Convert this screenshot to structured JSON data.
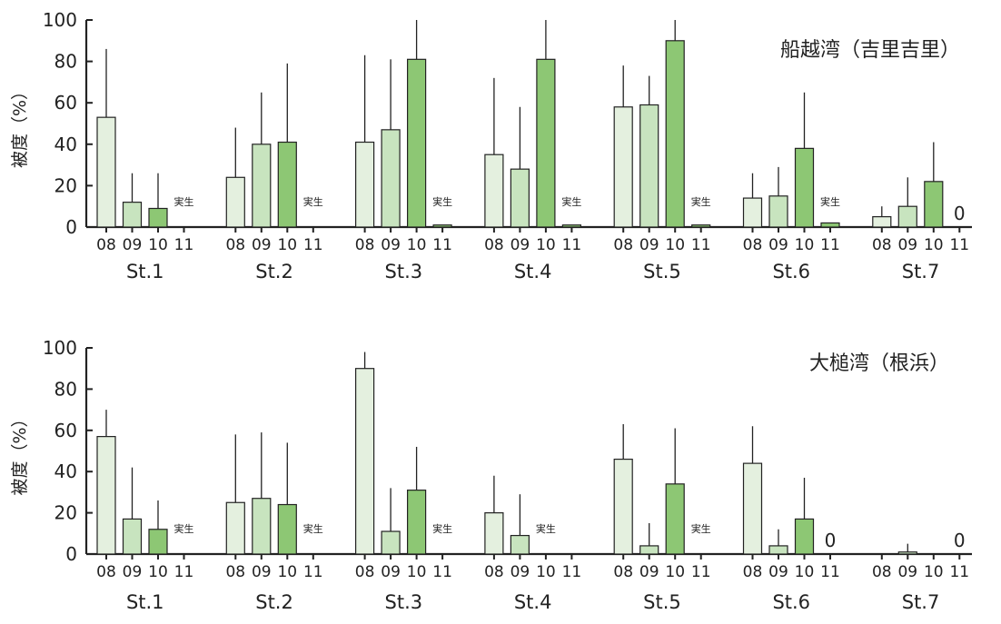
{
  "chart_data": [
    {
      "type": "bar",
      "title": "船越湾（吉里吉里）",
      "ylabel": "被度（%）",
      "ylim": [
        0,
        100
      ],
      "yticks": [
        "0",
        "20",
        "40",
        "60",
        "80",
        "100"
      ],
      "groups": [
        "St.1",
        "St.2",
        "St.3",
        "St.4",
        "St.5",
        "St.6",
        "St.7"
      ],
      "categories": [
        "08",
        "09",
        "10",
        "11"
      ],
      "series": [
        {
          "values": [
            53,
            12,
            9,
            null
          ],
          "errors": [
            86,
            26,
            26,
            null
          ],
          "notes": [
            "",
            "",
            "",
            "実生"
          ]
        },
        {
          "values": [
            24,
            40,
            41,
            null
          ],
          "errors": [
            48,
            65,
            79,
            null
          ],
          "notes": [
            "",
            "",
            "",
            "実生"
          ]
        },
        {
          "values": [
            41,
            47,
            81,
            1
          ],
          "errors": [
            83,
            81,
            100,
            null
          ],
          "notes": [
            "",
            "",
            "",
            "実生"
          ]
        },
        {
          "values": [
            35,
            28,
            81,
            1
          ],
          "errors": [
            72,
            58,
            100,
            null
          ],
          "notes": [
            "",
            "",
            "",
            "実生"
          ]
        },
        {
          "values": [
            58,
            59,
            90,
            1
          ],
          "errors": [
            78,
            73,
            100,
            null
          ],
          "notes": [
            "",
            "",
            "",
            "実生"
          ]
        },
        {
          "values": [
            14,
            15,
            38,
            2
          ],
          "errors": [
            26,
            29,
            65,
            null
          ],
          "notes": [
            "",
            "",
            "",
            "実生"
          ]
        },
        {
          "values": [
            5,
            10,
            22,
            0
          ],
          "errors": [
            10,
            24,
            41,
            null
          ],
          "notes": [
            "",
            "",
            "",
            "0"
          ]
        }
      ],
      "colors": [
        "#e4f0df",
        "#c8e4bf",
        "#8dc774"
      ]
    },
    {
      "type": "bar",
      "title": "大槌湾（根浜）",
      "ylabel": "被度（%）",
      "ylim": [
        0,
        100
      ],
      "yticks": [
        "0",
        "20",
        "40",
        "60",
        "80",
        "100"
      ],
      "groups": [
        "St.1",
        "St.2",
        "St.3",
        "St.4",
        "St.5",
        "St.6",
        "St.7"
      ],
      "categories": [
        "08",
        "09",
        "10",
        "11"
      ],
      "series": [
        {
          "values": [
            57,
            17,
            12,
            null
          ],
          "errors": [
            70,
            42,
            26,
            null
          ],
          "notes": [
            "",
            "",
            "",
            "実生"
          ]
        },
        {
          "values": [
            25,
            27,
            24,
            null
          ],
          "errors": [
            58,
            59,
            54,
            null
          ],
          "notes": [
            "",
            "",
            "",
            "実生"
          ]
        },
        {
          "values": [
            90,
            11,
            31,
            null
          ],
          "errors": [
            98,
            32,
            52,
            null
          ],
          "notes": [
            "",
            "",
            "",
            "実生"
          ]
        },
        {
          "values": [
            20,
            9,
            null,
            null
          ],
          "errors": [
            38,
            29,
            null,
            null
          ],
          "notes": [
            "",
            "",
            "実生",
            ""
          ]
        },
        {
          "values": [
            46,
            4,
            34,
            null
          ],
          "errors": [
            63,
            15,
            61,
            null
          ],
          "notes": [
            "",
            "",
            "",
            "実生"
          ]
        },
        {
          "values": [
            44,
            4,
            17,
            0
          ],
          "errors": [
            62,
            12,
            37,
            null
          ],
          "notes": [
            "",
            "",
            "",
            "0"
          ]
        },
        {
          "values": [
            null,
            1,
            null,
            0
          ],
          "errors": [
            null,
            5,
            null,
            null
          ],
          "notes": [
            "",
            "",
            "",
            "0"
          ]
        }
      ],
      "colors": [
        "#e4f0df",
        "#c8e4bf",
        "#8dc774"
      ]
    }
  ]
}
